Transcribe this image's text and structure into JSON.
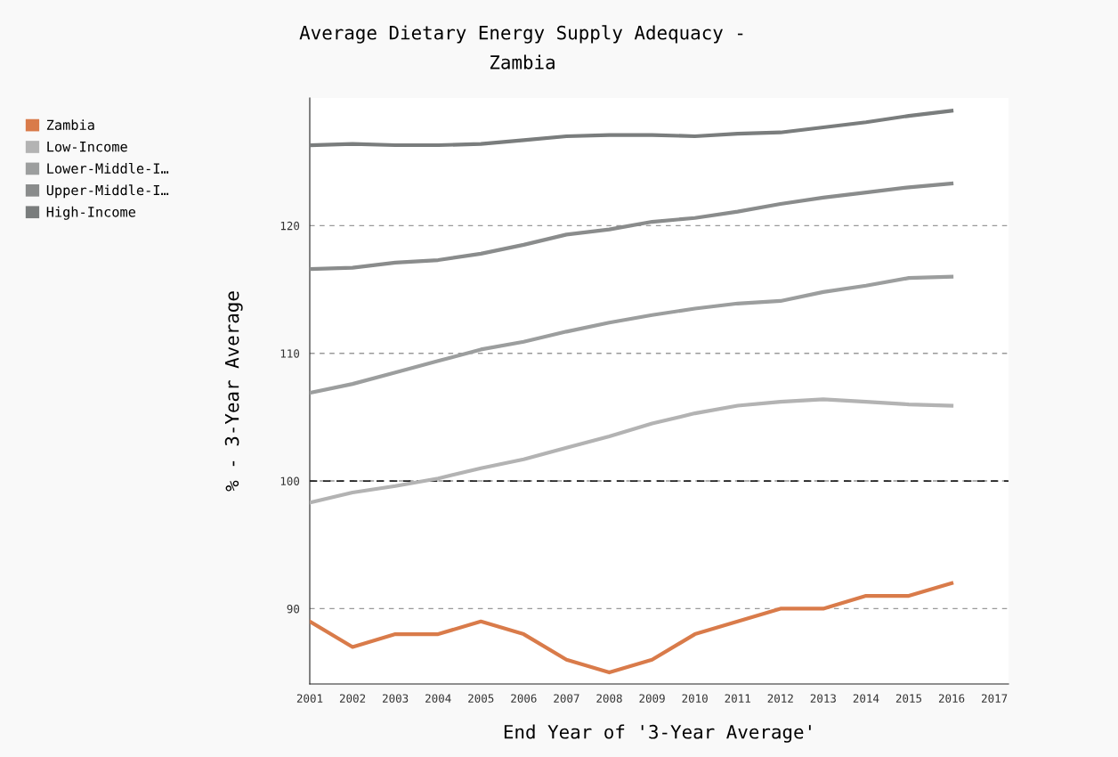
{
  "chart_data": {
    "type": "line",
    "title": "Average Dietary Energy Supply Adequacy -\nZambia",
    "xlabel": "End Year of '3-Year Average'",
    "ylabel": "% - 3-Year Average",
    "x": [
      2001,
      2002,
      2003,
      2004,
      2005,
      2006,
      2007,
      2008,
      2009,
      2010,
      2011,
      2012,
      2013,
      2014,
      2015,
      2016
    ],
    "series": [
      {
        "name": "Zambia",
        "color": "#d97b4a",
        "values": [
          89,
          87,
          88,
          88,
          89,
          88,
          86,
          85,
          86,
          88,
          89,
          90,
          90,
          91,
          91,
          92
        ]
      },
      {
        "name": "Low-Income",
        "color": "#b3b3b3",
        "values": [
          98.3,
          99.1,
          99.6,
          100.2,
          101.0,
          101.7,
          102.6,
          103.5,
          104.5,
          105.3,
          105.9,
          106.2,
          106.4,
          106.2,
          106.0,
          105.9
        ]
      },
      {
        "name": "Lower-Middle-I…",
        "color": "#9c9e9e",
        "values": [
          106.9,
          107.6,
          108.5,
          109.4,
          110.3,
          110.9,
          111.7,
          112.4,
          113.0,
          113.5,
          113.9,
          114.1,
          114.8,
          115.3,
          115.9,
          116.0
        ]
      },
      {
        "name": "Upper-Middle-I…",
        "color": "#8a8c8c",
        "values": [
          116.6,
          116.7,
          117.1,
          117.3,
          117.8,
          118.5,
          119.3,
          119.7,
          120.3,
          120.6,
          121.1,
          121.7,
          122.2,
          122.6,
          123.0,
          123.3
        ]
      },
      {
        "name": "High-Income",
        "color": "#7a7d7d",
        "values": [
          126.3,
          126.4,
          126.3,
          126.3,
          126.4,
          126.7,
          127.0,
          127.1,
          127.1,
          127.0,
          127.2,
          127.3,
          127.7,
          128.1,
          128.6,
          129.0
        ]
      }
    ],
    "xlim": [
      2001,
      2017.33
    ],
    "xticks": [
      2001,
      2002,
      2003,
      2004,
      2005,
      2006,
      2007,
      2008,
      2009,
      2010,
      2011,
      2012,
      2013,
      2014,
      2015,
      2016,
      2017
    ],
    "ylim": [
      84.1,
      130
    ],
    "yticks": [
      90,
      100,
      110,
      120
    ],
    "ref_lines": [
      {
        "axis": "y",
        "value": 100,
        "color": "#222222",
        "line_style": "dashed"
      }
    ],
    "grid": "y",
    "legend": "left",
    "marker": "none",
    "line_style": "solid"
  }
}
